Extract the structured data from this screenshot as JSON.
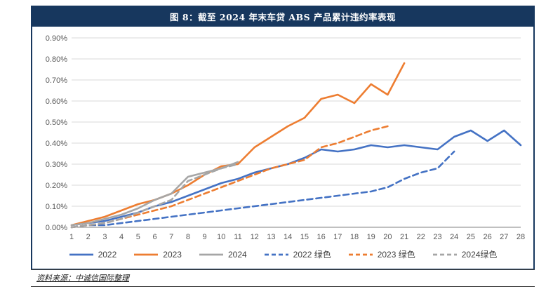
{
  "figure": {
    "title": "图 8：截至 2024 年末车贷 ABS 产品累计违约率表现",
    "source": "资料来源：中诚信国际整理"
  },
  "colors": {
    "header_bg": "#17375E",
    "header_text": "#FFFFFF",
    "box_border": "#17375E",
    "grid": "#D9D9D9",
    "axis_line": "#808080",
    "tick_text": "#595959",
    "series_blue": "#4472C4",
    "series_orange": "#ED7D31",
    "series_gray": "#A6A6A6"
  },
  "chart_data": {
    "type": "line",
    "title": "截至 2024 年末车贷 ABS 产品累计违约率表现",
    "xlabel": "",
    "ylabel": "",
    "grid": true,
    "legend_position": "bottom",
    "ylim": [
      0,
      0.9
    ],
    "y_tick_labels": [
      "0.00%",
      "0.10%",
      "0.20%",
      "0.30%",
      "0.40%",
      "0.50%",
      "0.60%",
      "0.70%",
      "0.80%",
      "0.90%"
    ],
    "x_min": 1,
    "x_max": 28,
    "x_ticks": [
      1,
      2,
      3,
      4,
      5,
      6,
      7,
      8,
      9,
      10,
      11,
      12,
      13,
      14,
      15,
      16,
      17,
      18,
      19,
      20,
      21,
      22,
      23,
      24,
      25,
      26,
      27,
      28
    ],
    "units": "percent",
    "series": [
      {
        "name": "2022",
        "color": "#4472C4",
        "dashed": false,
        "x_start": 1,
        "values": [
          0.01,
          0.02,
          0.03,
          0.05,
          0.07,
          0.1,
          0.12,
          0.15,
          0.18,
          0.21,
          0.23,
          0.26,
          0.28,
          0.3,
          0.33,
          0.37,
          0.36,
          0.37,
          0.39,
          0.38,
          0.39,
          0.38,
          0.37,
          0.43,
          0.46,
          0.41,
          0.46,
          0.39
        ]
      },
      {
        "name": "2023",
        "color": "#ED7D31",
        "dashed": false,
        "x_start": 1,
        "values": [
          0.01,
          0.03,
          0.05,
          0.08,
          0.11,
          0.13,
          0.16,
          0.2,
          0.25,
          0.29,
          0.3,
          0.38,
          0.43,
          0.48,
          0.52,
          0.61,
          0.63,
          0.59,
          0.68,
          0.63,
          0.78
        ]
      },
      {
        "name": "2024",
        "color": "#A6A6A6",
        "dashed": false,
        "x_start": 1,
        "values": [
          0.01,
          0.02,
          0.04,
          0.06,
          0.09,
          0.13,
          0.16,
          0.24,
          0.26,
          0.28,
          0.31
        ]
      },
      {
        "name": "2022 绿色",
        "color": "#4472C4",
        "dashed": true,
        "x_start": 1,
        "values": [
          0.0,
          0.01,
          0.01,
          0.02,
          0.03,
          0.04,
          0.05,
          0.06,
          0.07,
          0.08,
          0.09,
          0.1,
          0.11,
          0.12,
          0.13,
          0.14,
          0.15,
          0.16,
          0.17,
          0.19,
          0.23,
          0.26,
          0.28,
          0.36
        ]
      },
      {
        "name": "2023 绿色",
        "color": "#ED7D31",
        "dashed": true,
        "x_start": 1,
        "values": [
          0.0,
          0.01,
          0.02,
          0.04,
          0.06,
          0.08,
          0.1,
          0.13,
          0.16,
          0.19,
          0.22,
          0.25,
          0.28,
          0.3,
          0.32,
          0.38,
          0.4,
          0.43,
          0.46,
          0.48
        ]
      },
      {
        "name": "2024绿色",
        "color": "#A6A6A6",
        "dashed": true,
        "x_start": 1,
        "values": [
          0.0,
          0.01,
          0.02,
          0.04,
          0.07,
          0.1,
          0.13,
          0.22,
          0.25,
          0.28,
          0.3
        ]
      }
    ]
  }
}
